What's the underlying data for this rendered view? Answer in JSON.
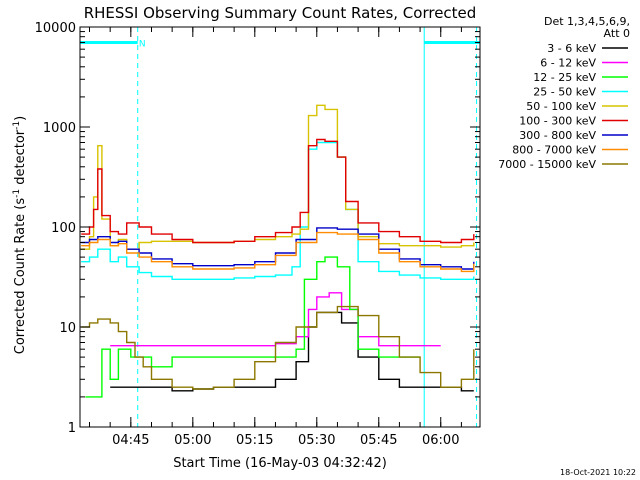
{
  "chart_data": {
    "type": "line",
    "title": "RHESSI Observing Summary Count Rates, Corrected",
    "xlabel": "Start Time (16-May-03 04:32:42)",
    "ylabel_parts": [
      "Corrected Count Rate (s",
      "-1",
      " detector",
      "-1",
      ")"
    ],
    "y_scale": "log",
    "ylim": [
      1,
      10000
    ],
    "xlim": [
      "04:32:42",
      "06:09:30"
    ],
    "xticks": [
      "04:45",
      "05:00",
      "05:15",
      "05:30",
      "05:45",
      "06:00"
    ],
    "yticks": [
      "1",
      "10",
      "100",
      "1000",
      "10000"
    ],
    "legend_title": [
      "Det 1,3,4,5,6,9,",
      "Att 0"
    ],
    "legend_position": "right",
    "footer_date": "18-Oct-2021 10:22",
    "annotations": [
      {
        "text": "N",
        "x": "04:45:30",
        "color": "#00ffff"
      }
    ],
    "flag_bars": {
      "color": "#00ffff",
      "segments": [
        [
          "04:32:42",
          "04:46:40"
        ],
        [
          "05:56:00",
          "06:09:30"
        ]
      ],
      "y": 7000
    },
    "flag_lines": [
      "04:32:42",
      "04:46:40",
      "05:56:00",
      "06:08:40"
    ],
    "series": [
      {
        "name": "3 - 6 keV",
        "color": "#000000",
        "x": [
          "04:40",
          "04:45",
          "04:50",
          "04:55",
          "05:00",
          "05:05",
          "05:10",
          "05:15",
          "05:20",
          "05:25",
          "05:28",
          "05:30",
          "05:33",
          "05:36",
          "05:40",
          "05:45",
          "05:50",
          "05:55",
          "06:00",
          "06:05",
          "06:08"
        ],
        "values": [
          2.5,
          2.5,
          2.5,
          2.3,
          2.4,
          2.5,
          2.5,
          2.5,
          3,
          4.5,
          10,
          14,
          14,
          11,
          5,
          3,
          2.5,
          2.5,
          2.5,
          2.3,
          2.3
        ]
      },
      {
        "name": "6 - 12 keV",
        "color": "#ff00ff",
        "x": [
          "04:40",
          "04:45",
          "04:50",
          "04:55",
          "05:00",
          "05:05",
          "05:10",
          "05:15",
          "05:20",
          "05:25",
          "05:28",
          "05:30",
          "05:33",
          "05:36",
          "05:40",
          "05:45",
          "05:50",
          "05:55",
          "06:00"
        ],
        "values": [
          6.5,
          6.5,
          6.5,
          6.5,
          6.5,
          6.5,
          6.5,
          6.5,
          6.8,
          8,
          15,
          20,
          22,
          15,
          8,
          6.5,
          6.5,
          6.5,
          6.5
        ]
      },
      {
        "name": "12 - 25 keV",
        "color": "#00ff00",
        "x": [
          "04:34",
          "04:37",
          "04:38",
          "04:40",
          "04:42",
          "04:45",
          "04:50",
          "04:55",
          "05:00",
          "05:05",
          "05:10",
          "05:15",
          "05:20",
          "05:25",
          "05:27",
          "05:30",
          "05:32",
          "05:35",
          "05:38",
          "05:40",
          "05:45",
          "05:50",
          "05:55"
        ],
        "values": [
          2,
          2,
          6,
          3,
          6,
          5,
          4,
          5,
          5,
          5,
          5,
          5,
          5,
          6,
          30,
          45,
          50,
          40,
          15,
          6,
          5,
          5,
          5
        ]
      },
      {
        "name": "25 - 50 keV",
        "color": "#00ffff",
        "x": [
          "04:33",
          "04:35",
          "04:37",
          "04:40",
          "04:42",
          "04:44",
          "04:47",
          "04:50",
          "04:55",
          "05:00",
          "05:05",
          "05:10",
          "05:15",
          "05:20",
          "05:24",
          "05:26",
          "05:28",
          "05:30",
          "05:32",
          "05:35",
          "05:37",
          "05:40",
          "05:45",
          "05:50",
          "05:55",
          "06:00",
          "06:05",
          "06:08"
        ],
        "values": [
          45,
          50,
          60,
          45,
          50,
          40,
          35,
          32,
          30,
          30,
          30,
          31,
          32,
          33,
          40,
          100,
          600,
          700,
          700,
          500,
          150,
          45,
          36,
          33,
          31,
          30,
          30,
          32
        ]
      },
      {
        "name": "50 - 100 keV",
        "color": "#d7c300",
        "x": [
          "04:33",
          "04:35",
          "04:36",
          "04:37",
          "04:38",
          "04:40",
          "04:42",
          "04:44",
          "04:47",
          "04:50",
          "04:55",
          "05:00",
          "05:05",
          "05:10",
          "05:15",
          "05:20",
          "05:24",
          "05:26",
          "05:28",
          "05:30",
          "05:32",
          "05:35",
          "05:37",
          "05:40",
          "05:45",
          "05:50",
          "05:55",
          "06:00",
          "06:05",
          "06:08"
        ],
        "values": [
          60,
          80,
          200,
          650,
          120,
          65,
          75,
          60,
          70,
          72,
          72,
          70,
          70,
          72,
          75,
          80,
          85,
          95,
          1300,
          1650,
          1500,
          500,
          150,
          80,
          68,
          65,
          65,
          63,
          65,
          70
        ]
      },
      {
        "name": "100 - 300 keV",
        "color": "#e00000",
        "x": [
          "04:33",
          "04:35",
          "04:36",
          "04:37",
          "04:38",
          "04:40",
          "04:42",
          "04:44",
          "04:47",
          "04:50",
          "04:55",
          "05:00",
          "05:05",
          "05:10",
          "05:15",
          "05:20",
          "05:24",
          "05:26",
          "05:28",
          "05:30",
          "05:32",
          "05:35",
          "05:37",
          "05:40",
          "05:45",
          "05:50",
          "05:55",
          "06:00",
          "06:05",
          "06:08"
        ],
        "values": [
          85,
          100,
          150,
          380,
          130,
          90,
          85,
          110,
          100,
          85,
          75,
          70,
          70,
          72,
          80,
          88,
          100,
          140,
          650,
          750,
          720,
          500,
          180,
          110,
          90,
          80,
          72,
          70,
          75,
          85
        ]
      },
      {
        "name": "300 - 800 keV",
        "color": "#0000c8",
        "x": [
          "04:33",
          "04:35",
          "04:37",
          "04:40",
          "04:42",
          "04:44",
          "04:47",
          "04:50",
          "04:55",
          "05:00",
          "05:05",
          "05:10",
          "05:15",
          "05:20",
          "05:25",
          "05:30",
          "05:35",
          "05:40",
          "05:45",
          "05:50",
          "05:55",
          "06:00",
          "06:05",
          "06:08"
        ],
        "values": [
          70,
          75,
          80,
          70,
          72,
          60,
          55,
          48,
          43,
          41,
          41,
          42,
          45,
          55,
          75,
          98,
          95,
          85,
          60,
          48,
          42,
          40,
          38,
          45
        ]
      },
      {
        "name": "800 - 7000 keV",
        "color": "#ff8c00",
        "x": [
          "04:33",
          "04:35",
          "04:37",
          "04:40",
          "04:42",
          "04:44",
          "04:47",
          "04:50",
          "04:55",
          "05:00",
          "05:05",
          "05:10",
          "05:15",
          "05:20",
          "05:25",
          "05:30",
          "05:35",
          "05:40",
          "05:45",
          "05:50",
          "05:55",
          "06:00",
          "06:05",
          "06:08"
        ],
        "values": [
          65,
          70,
          75,
          65,
          68,
          55,
          50,
          45,
          40,
          38,
          38,
          39,
          42,
          52,
          70,
          88,
          85,
          75,
          55,
          45,
          40,
          38,
          36,
          43
        ]
      },
      {
        "name": "7000 - 15000 keV",
        "color": "#8c7800",
        "x": [
          "04:33",
          "04:35",
          "04:37",
          "04:40",
          "04:42",
          "04:44",
          "04:46",
          "04:48",
          "04:50",
          "04:55",
          "05:00",
          "05:05",
          "05:10",
          "05:15",
          "05:20",
          "05:25",
          "05:30",
          "05:35",
          "05:40",
          "05:45",
          "05:50",
          "05:55",
          "06:00",
          "06:05",
          "06:08"
        ],
        "values": [
          10,
          11,
          12,
          11,
          9,
          7,
          5,
          4,
          3,
          2.5,
          2.4,
          2.5,
          3,
          4.5,
          7,
          10,
          14,
          16,
          13,
          8,
          5,
          3.5,
          2.5,
          3,
          6
        ]
      }
    ]
  }
}
